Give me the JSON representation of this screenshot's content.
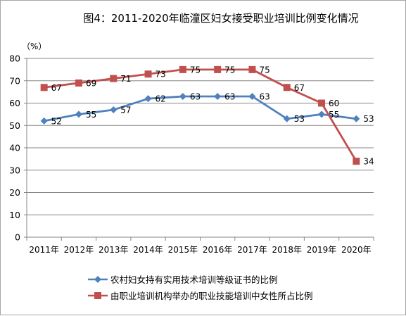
{
  "chart_data": {
    "type": "line",
    "title": "图4：2011-2020年临潼区妇女接受职业培训比例变化情况",
    "unit_label": "（%）",
    "categories": [
      "2011年",
      "2012年",
      "2013年",
      "2014年",
      "2015年",
      "2016年",
      "2017年",
      "2018年",
      "2019年",
      "2020年"
    ],
    "ylim": [
      0,
      80
    ],
    "yticks": [
      0,
      10,
      20,
      30,
      40,
      50,
      60,
      70,
      80
    ],
    "grid": true,
    "legend_position": "bottom",
    "series": [
      {
        "name": "农村妇女持有实用技术培训等级证书的比例",
        "color": "#4f81bd",
        "marker": "diamond",
        "values": [
          52,
          55,
          57,
          62,
          63,
          63,
          63,
          53,
          55,
          53
        ]
      },
      {
        "name": "由职业培训机构举办的职业技能培训中女性所占比例",
        "color": "#c0504d",
        "marker": "square",
        "values": [
          67,
          69,
          71,
          73,
          75,
          75,
          75,
          67,
          60,
          34
        ]
      }
    ]
  }
}
